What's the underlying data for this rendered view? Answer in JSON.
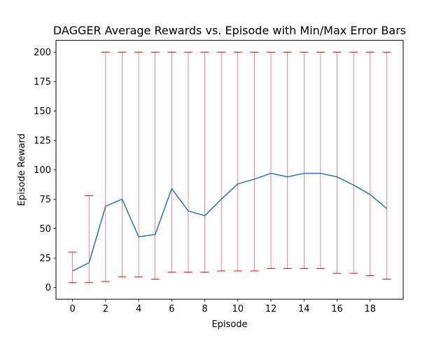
{
  "chart_data": {
    "type": "line",
    "title": "DAGGER Average Rewards vs. Episode with Min/Max Error Bars",
    "xlabel": "Episode",
    "ylabel": "Episode Reward",
    "xlim": [
      -1,
      20
    ],
    "ylim": [
      -10,
      210
    ],
    "x_ticks": [
      0,
      2,
      4,
      6,
      8,
      10,
      12,
      14,
      16,
      18
    ],
    "y_ticks": [
      0,
      25,
      50,
      75,
      100,
      125,
      150,
      175,
      200
    ],
    "grid": false,
    "legend": "none",
    "x": [
      0,
      1,
      2,
      3,
      4,
      5,
      6,
      7,
      8,
      9,
      10,
      11,
      12,
      13,
      14,
      15,
      16,
      17,
      18,
      19
    ],
    "series": [
      {
        "values": [
          14,
          21,
          69,
          75,
          43,
          45,
          84,
          65,
          61,
          75,
          88,
          92,
          97,
          94,
          97,
          97,
          94,
          87,
          79,
          67
        ],
        "min": [
          4,
          4,
          5,
          9,
          9,
          7,
          13,
          13,
          13,
          14,
          14,
          14,
          16,
          16,
          16,
          16,
          12,
          12,
          10,
          7
        ],
        "max": [
          30,
          78,
          200,
          200,
          200,
          200,
          200,
          200,
          200,
          200,
          200,
          200,
          200,
          200,
          200,
          200,
          200,
          200,
          200,
          200
        ]
      }
    ],
    "colors": {
      "line": "#1f77b4",
      "errorbar": "#ff0000"
    }
  }
}
